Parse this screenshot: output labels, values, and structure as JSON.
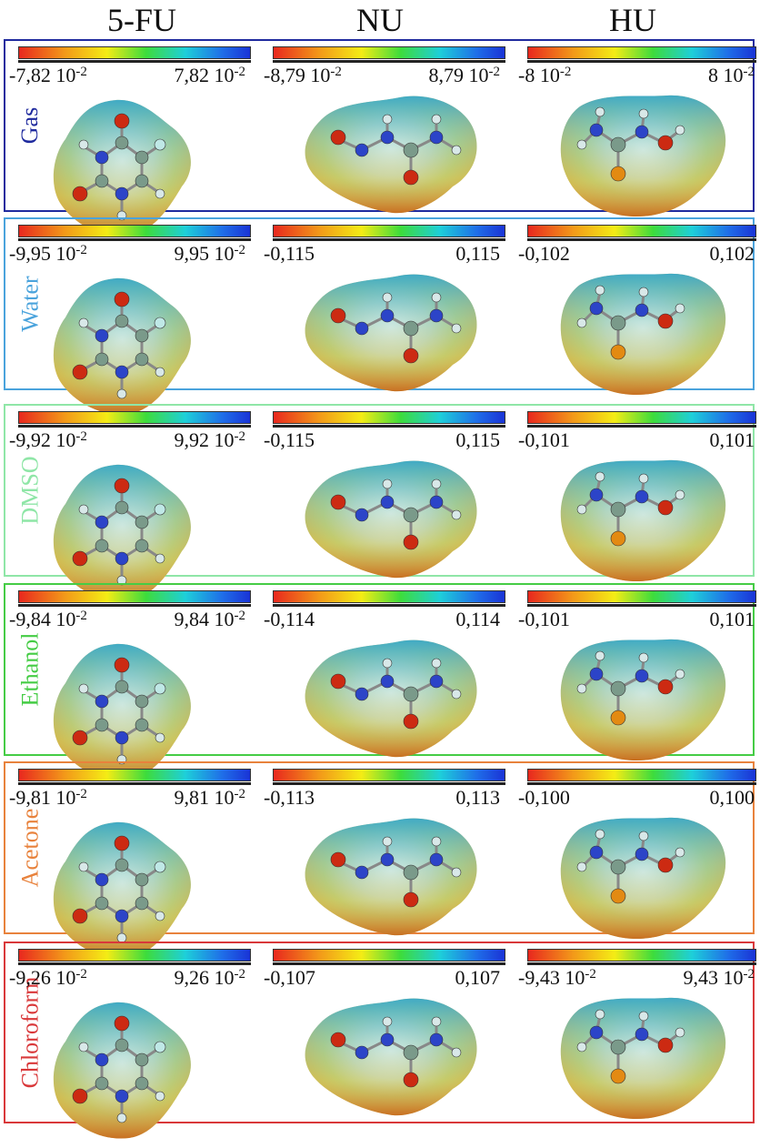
{
  "headers": [
    "5-FU",
    "NU",
    "HU"
  ],
  "colors": {
    "gas": "#1f2a9e",
    "water": "#4aa3dc",
    "dmso": "#8fe6a7",
    "ethanol": "#45cc45",
    "acetone": "#e8823c",
    "chloroform": "#d9383a"
  },
  "panels": [
    {
      "solvent": "Gas",
      "fu": {
        "min": "-7,82 10",
        "min_exp": "-2",
        "max": "7,82 10",
        "max_exp": "-2"
      },
      "nu": {
        "min": "-8,79 10",
        "min_exp": "-2",
        "max": "8,79 10",
        "max_exp": "-2"
      },
      "hu": {
        "min": "-8 10",
        "min_exp": "-2",
        "max": "8 10",
        "max_exp": "-2"
      }
    },
    {
      "solvent": "Water",
      "fu": {
        "min": "-9,95 10",
        "min_exp": "-2",
        "max": "9,95 10",
        "max_exp": "-2"
      },
      "nu": {
        "min": "-0,115",
        "min_exp": "",
        "max": "0,115",
        "max_exp": ""
      },
      "hu": {
        "min": "-0,102",
        "min_exp": "",
        "max": "0,102",
        "max_exp": ""
      }
    },
    {
      "solvent": "DMSO",
      "fu": {
        "min": "-9,92 10",
        "min_exp": "-2",
        "max": "9,92 10",
        "max_exp": "-2"
      },
      "nu": {
        "min": "-0,115",
        "min_exp": "",
        "max": "0,115",
        "max_exp": ""
      },
      "hu": {
        "min": "-0,101",
        "min_exp": "",
        "max": "0,101",
        "max_exp": ""
      }
    },
    {
      "solvent": "Ethanol",
      "fu": {
        "min": "-9,84 10",
        "min_exp": "-2",
        "max": "9,84 10",
        "max_exp": "-2"
      },
      "nu": {
        "min": "-0,114",
        "min_exp": "",
        "max": "0,114",
        "max_exp": ""
      },
      "hu": {
        "min": "-0,101",
        "min_exp": "",
        "max": "0,101",
        "max_exp": ""
      }
    },
    {
      "solvent": "Acetone",
      "fu": {
        "min": "-9,81 10",
        "min_exp": "-2",
        "max": "9,81 10",
        "max_exp": "-2"
      },
      "nu": {
        "min": "-0,113",
        "min_exp": "",
        "max": "0,113",
        "max_exp": ""
      },
      "hu": {
        "min": "-0,100",
        "min_exp": "",
        "max": "0,100",
        "max_exp": ""
      }
    },
    {
      "solvent": "Chloroform",
      "fu": {
        "min": "-9,26 10",
        "min_exp": "-2",
        "max": "9,26 10",
        "max_exp": "-2"
      },
      "nu": {
        "min": "-0,107",
        "min_exp": "",
        "max": "0,107",
        "max_exp": ""
      },
      "hu": {
        "min": "-9,43 10",
        "min_exp": "-2",
        "max": "9,43 10",
        "max_exp": "-2"
      }
    }
  ]
}
